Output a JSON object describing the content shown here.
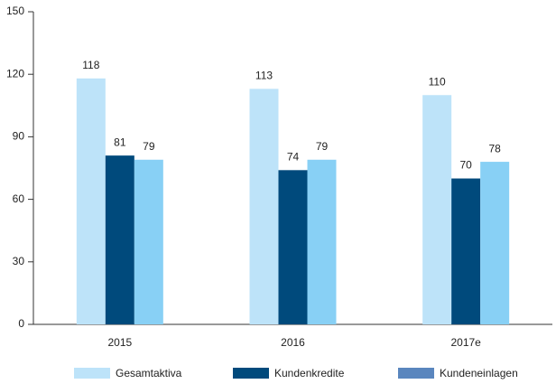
{
  "chart_data": {
    "type": "bar",
    "categories": [
      "2015",
      "2016",
      "2017e"
    ],
    "series": [
      {
        "name": "Gesamtaktiva",
        "color": "#bde3f9",
        "legend_color": "#bde3f9",
        "values": [
          118,
          113,
          110
        ]
      },
      {
        "name": "Kundenkredite",
        "color": "#004a7c",
        "legend_color": "#004a7c",
        "values": [
          81,
          74,
          70
        ]
      },
      {
        "name": "Kundeneinlagen",
        "color": "#88d0f5",
        "legend_color": "#5a86be",
        "values": [
          79,
          79,
          78
        ]
      }
    ],
    "ylim": [
      0,
      150
    ],
    "yticks": [
      0,
      30,
      60,
      90,
      120,
      150
    ],
    "grid": false,
    "legend": "bottom"
  }
}
